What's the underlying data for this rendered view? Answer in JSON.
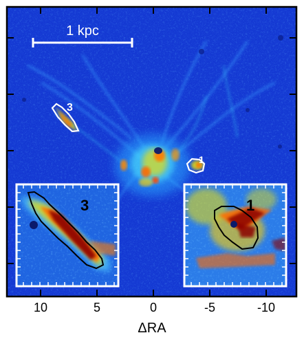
{
  "figure": {
    "xlabel": "ΔRA",
    "x_ticks": [
      "10",
      "5",
      "0",
      "-5",
      "-10"
    ],
    "scale_bar_label": "1 kpc",
    "region_labels": {
      "main_3": "3",
      "main_1": "1",
      "inset_3": "3",
      "inset_1": "1"
    },
    "colors": {
      "background": "#1438d2",
      "contour_main": "#ffffff",
      "contour_inset": "#000000",
      "inset_frame": "#ffffff",
      "emission_hot": "#8b0000",
      "emission_warm": "#ff7a00",
      "emission_mid": "#f2e000",
      "emission_cool": "#3cd0ff"
    },
    "colormap": "jet"
  }
}
